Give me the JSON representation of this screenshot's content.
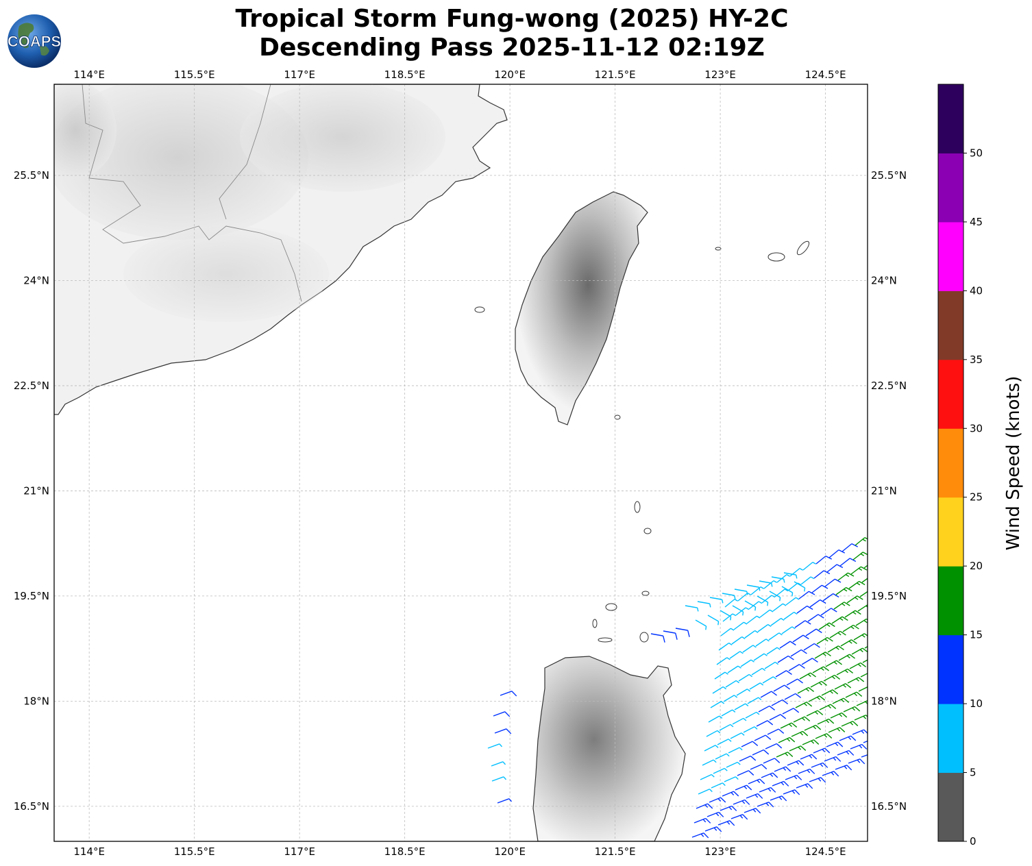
{
  "title_line1": "Tropical Storm Fung-wong (2025) HY-2C",
  "title_line2": "Descending Pass 2025-11-12 02:19Z",
  "logo_text": "COAPS",
  "map": {
    "lon_ticks": [
      "114°E",
      "115.5°E",
      "117°E",
      "118.5°E",
      "120°E",
      "121.5°E",
      "123°E",
      "124.5°E"
    ],
    "lon_values": [
      114,
      115.5,
      117,
      118.5,
      120,
      121.5,
      123,
      124.5
    ],
    "lat_ticks": [
      "25.5°N",
      "24°N",
      "22.5°N",
      "21°N",
      "19.5°N",
      "18°N",
      "16.5°N"
    ],
    "lat_values": [
      25.5,
      24,
      22.5,
      21,
      19.5,
      18,
      16.5
    ],
    "lon_range": [
      113.5,
      125.1
    ],
    "lat_range": [
      16.0,
      26.8
    ]
  },
  "colorbar": {
    "title": "Wind Speed (knots)",
    "tick_labels": [
      "0",
      "5",
      "10",
      "15",
      "20",
      "25",
      "30",
      "35",
      "40",
      "45",
      "50"
    ],
    "bins": [
      0,
      5,
      10,
      15,
      20,
      25,
      30,
      35,
      40,
      45,
      50,
      55
    ],
    "colors": [
      "#595959",
      "#00bfff",
      "#0033ff",
      "#009100",
      "#ffd21e",
      "#ff8c0a",
      "#ff1010",
      "#823a28",
      "#ff00ff",
      "#8c00b4",
      "#2e005e"
    ]
  },
  "wind_barb_colors": {
    "5-10 kt": "#00bfff",
    "10-15 kt": "#0033ff",
    "15-20 kt": "#009100"
  }
}
